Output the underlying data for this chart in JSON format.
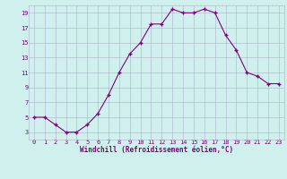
{
  "x": [
    0,
    1,
    2,
    3,
    4,
    5,
    6,
    7,
    8,
    9,
    10,
    11,
    12,
    13,
    14,
    15,
    16,
    17,
    18,
    19,
    20,
    21,
    22,
    23
  ],
  "y": [
    5,
    5,
    4,
    3,
    3,
    4,
    5.5,
    8,
    11,
    13.5,
    15,
    17.5,
    17.5,
    19.5,
    19,
    19,
    19.5,
    19,
    16,
    14,
    11,
    10.5,
    9.5,
    9.5
  ],
  "line_color": "#800080",
  "marker": "+",
  "marker_color": "#800080",
  "bg_color": "#cff0ec",
  "grid_color": "#b0b0cc",
  "xlabel": "Windchill (Refroidissement éolien,°C)",
  "xlabel_color": "#800080",
  "tick_color": "#800080",
  "ylim": [
    2,
    20
  ],
  "yticks": [
    3,
    5,
    7,
    9,
    11,
    13,
    15,
    17,
    19
  ],
  "xlim": [
    -0.5,
    23.5
  ],
  "xticks": [
    0,
    1,
    2,
    3,
    4,
    5,
    6,
    7,
    8,
    9,
    10,
    11,
    12,
    13,
    14,
    15,
    16,
    17,
    18,
    19,
    20,
    21,
    22,
    23
  ]
}
